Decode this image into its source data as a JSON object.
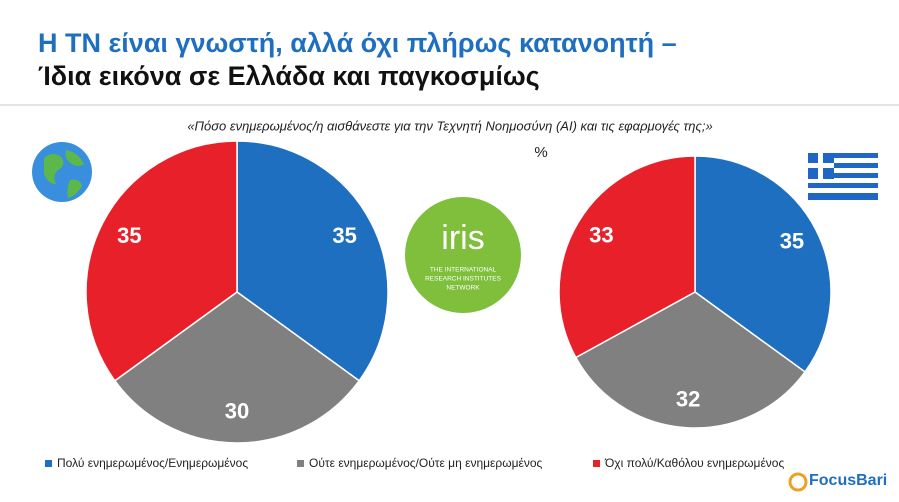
{
  "header": {
    "title_line1": "Η ΤΝ είναι γνωστή, αλλά όχι πλήρως κατανοητή –",
    "title_line2": "Ίδια εικόνα σε Ελλάδα και παγκοσμίως"
  },
  "question": "«Πόσο ενημερωμένος/η αισθάνεστε για την Τεχνητή Νοημοσύνη (AI)  και τις εφαρμογές της;»",
  "unit": "%",
  "legend": [
    "Πολύ ενημερωμένος/Ενημερωμένος",
    "Ούτε ενημερωμένος/Ούτε μη ενημερωμένος",
    "Όχι πολύ/Καθόλου ενημερωμένος"
  ],
  "chart_data": [
    {
      "type": "pie",
      "values": [
        35,
        30,
        35
      ],
      "colors": [
        "#1f6fc1",
        "#808080",
        "#e8202a"
      ]
    },
    {
      "type": "pie",
      "values": [
        35,
        32,
        33
      ],
      "colors": [
        "#1f6fc1",
        "#808080",
        "#e8202a"
      ]
    }
  ],
  "logo": {
    "name": "iris",
    "line1": "THE INTERNATIONAL",
    "line2": "RESEARCH INSTITUTES",
    "line3": "NETWORK"
  },
  "brand": "FocusBari"
}
